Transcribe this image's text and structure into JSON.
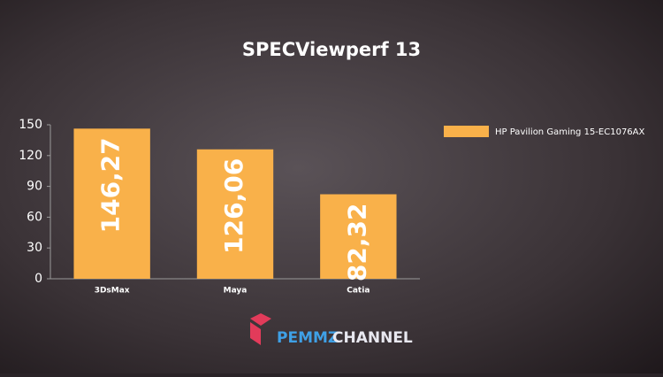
{
  "chart_data": {
    "type": "bar",
    "title": "SPECViewperf 13",
    "categories": [
      "3DsMax",
      "Maya",
      "Catia"
    ],
    "series": [
      {
        "name": "HP Pavilion Gaming 15-EC1076AX",
        "color": "#f9b14a",
        "values": [
          146.27,
          126.06,
          82.32
        ],
        "value_labels": [
          "146,27",
          "126,06",
          "82,32"
        ]
      }
    ],
    "ylim": [
      0,
      150
    ],
    "yticks": [
      0,
      30,
      60,
      90,
      120,
      150
    ],
    "grid": false,
    "legend": "right"
  },
  "watermark": {
    "brand": "PEMMZ",
    "suffix": "CHANNEL"
  }
}
